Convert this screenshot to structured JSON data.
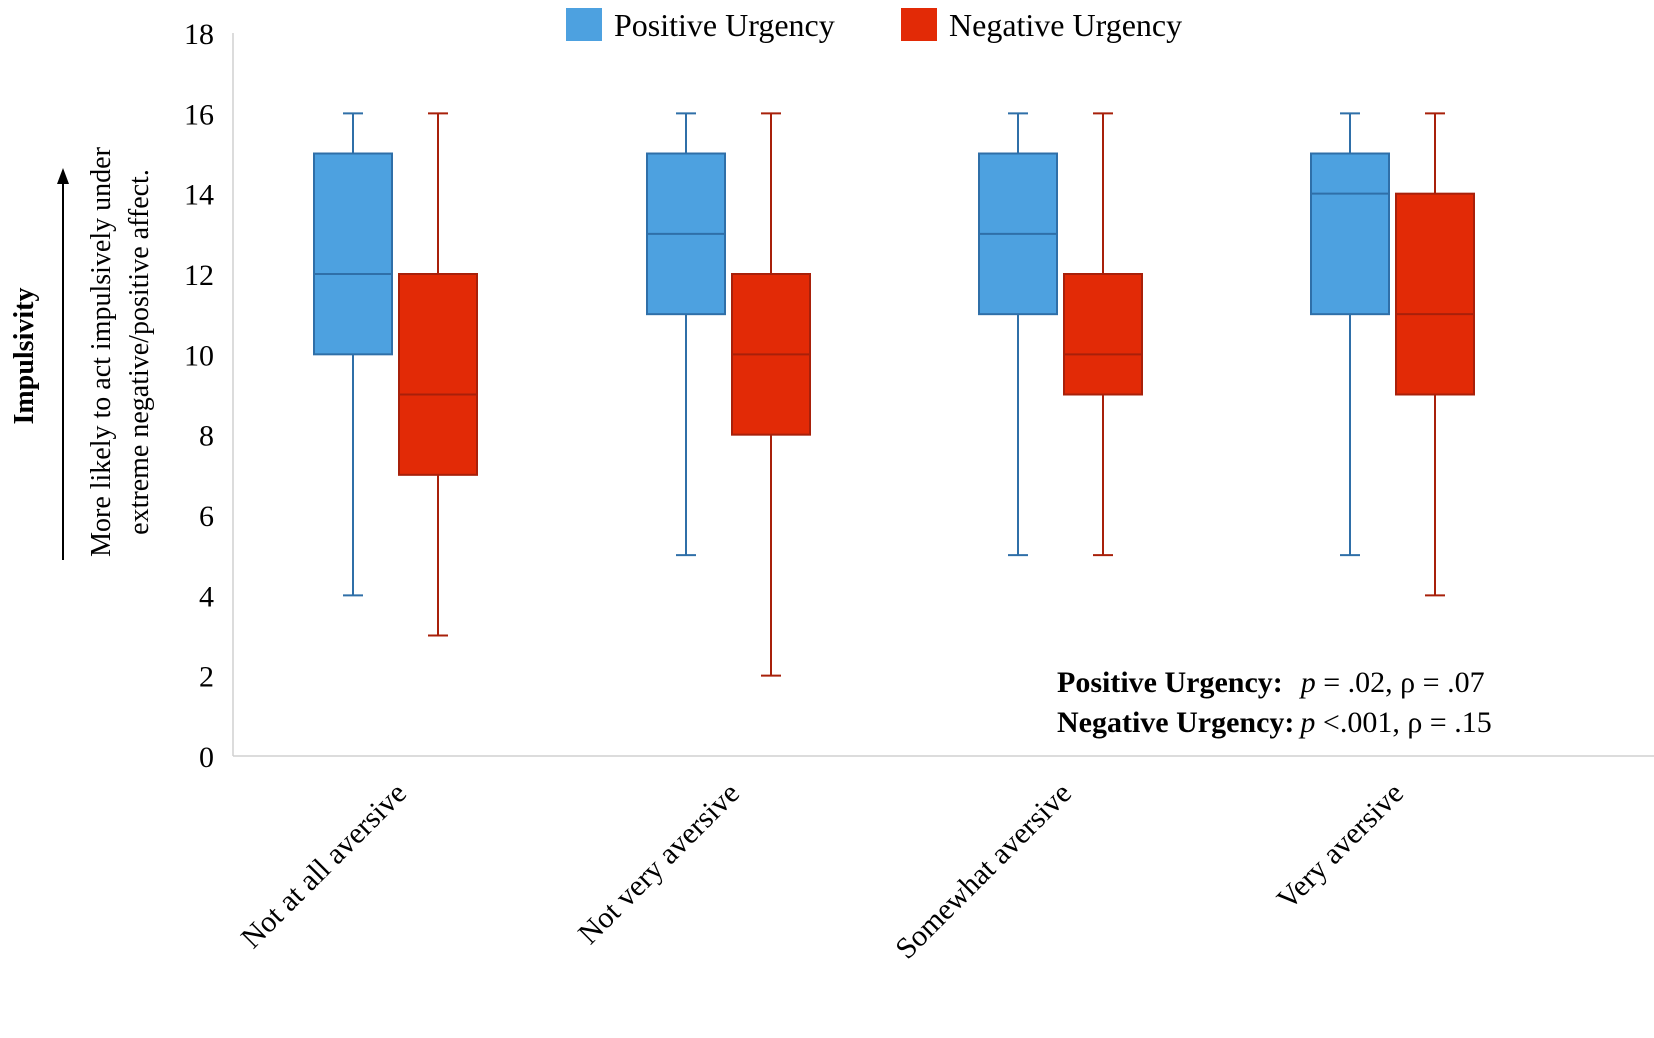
{
  "chart_data": {
    "type": "boxplot",
    "title": "",
    "xlabel": "",
    "ylabel": "Impulsivity",
    "ylabel_description_lines": [
      "More likely to act impulsively under",
      "extreme negative/positive affect."
    ],
    "ylim": [
      0,
      18
    ],
    "yticks": [
      0,
      2,
      4,
      6,
      8,
      10,
      12,
      14,
      16,
      18
    ],
    "grid": false,
    "legend_position": "top-center",
    "categories": [
      "Not at all aversive",
      "Not very aversive",
      "Somewhat aversive",
      "Very aversive"
    ],
    "series": [
      {
        "name": "Positive Urgency",
        "color": "#4DA1E0",
        "stroke": "#2F6FA8",
        "boxes": [
          {
            "min": 4,
            "q1": 10,
            "median": 12,
            "q3": 15,
            "max": 16
          },
          {
            "min": 5,
            "q1": 11,
            "median": 13,
            "q3": 15,
            "max": 16
          },
          {
            "min": 5,
            "q1": 11,
            "median": 13,
            "q3": 15,
            "max": 16
          },
          {
            "min": 5,
            "q1": 11,
            "median": 14,
            "q3": 15,
            "max": 16
          }
        ]
      },
      {
        "name": "Negative Urgency",
        "color": "#E22A06",
        "stroke": "#A8200A",
        "boxes": [
          {
            "min": 3,
            "q1": 7,
            "median": 9,
            "q3": 12,
            "max": 16
          },
          {
            "min": 2,
            "q1": 8,
            "median": 10,
            "q3": 12,
            "max": 16
          },
          {
            "min": 5,
            "q1": 9,
            "median": 10,
            "q3": 12,
            "max": 16
          },
          {
            "min": 4,
            "q1": 9,
            "median": 11,
            "q3": 14,
            "max": 16
          }
        ]
      }
    ],
    "annotations": [
      {
        "label": "Positive Urgency:",
        "p_symbol": "p",
        "value": " = .02, ρ = .07"
      },
      {
        "label": "Negative Urgency:",
        "p_symbol": "p",
        "value": " <.001, ρ = .15"
      }
    ]
  }
}
